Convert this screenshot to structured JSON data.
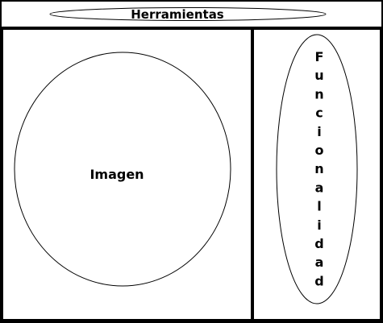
{
  "toolbar": {
    "label": "Herramientas"
  },
  "image_area": {
    "label": "Imagen"
  },
  "functionality_area": {
    "label": "Funcionalidad",
    "letters": [
      "F",
      "u",
      "n",
      "c",
      "i",
      "o",
      "n",
      "a",
      "l",
      "i",
      "d",
      "a",
      "d"
    ]
  }
}
